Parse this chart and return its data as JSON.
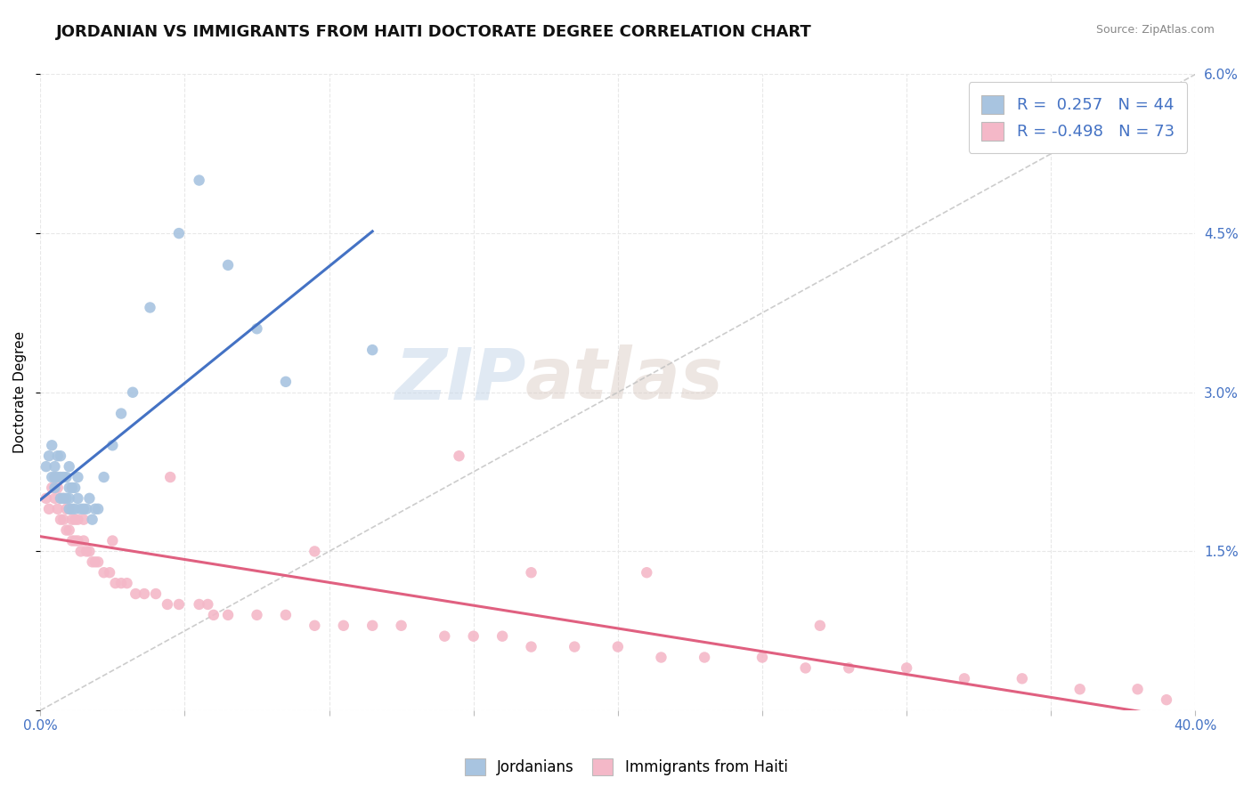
{
  "title": "JORDANIAN VS IMMIGRANTS FROM HAITI DOCTORATE DEGREE CORRELATION CHART",
  "source": "Source: ZipAtlas.com",
  "ylabel": "Doctorate Degree",
  "xlim": [
    0.0,
    0.4
  ],
  "ylim": [
    0.0,
    0.06
  ],
  "xticks": [
    0.0,
    0.05,
    0.1,
    0.15,
    0.2,
    0.25,
    0.3,
    0.35,
    0.4
  ],
  "yticks_right": [
    0.0,
    0.015,
    0.03,
    0.045,
    0.06
  ],
  "ytick_labels_right": [
    "",
    "1.5%",
    "3.0%",
    "4.5%",
    "6.0%"
  ],
  "r_jordanian": 0.257,
  "n_jordanian": 44,
  "r_haiti": -0.498,
  "n_haiti": 73,
  "color_jordanian": "#a8c4e0",
  "color_haiti": "#f4b8c8",
  "color_trendline_jordanian": "#4472c4",
  "color_trendline_haiti": "#e06080",
  "color_diagonal": "#c0c0c0",
  "background_color": "#ffffff",
  "grid_color": "#e8e8e8",
  "title_fontsize": 13,
  "axis_fontsize": 11,
  "tick_fontsize": 11,
  "watermark_zip": "ZIP",
  "watermark_atlas": "atlas",
  "scatter_jordanian_x": [
    0.002,
    0.003,
    0.004,
    0.004,
    0.005,
    0.005,
    0.005,
    0.006,
    0.006,
    0.007,
    0.007,
    0.007,
    0.008,
    0.008,
    0.009,
    0.009,
    0.01,
    0.01,
    0.01,
    0.01,
    0.011,
    0.011,
    0.012,
    0.012,
    0.013,
    0.013,
    0.014,
    0.015,
    0.016,
    0.017,
    0.018,
    0.019,
    0.02,
    0.022,
    0.025,
    0.028,
    0.032,
    0.038,
    0.048,
    0.055,
    0.065,
    0.075,
    0.085,
    0.115
  ],
  "scatter_jordanian_y": [
    0.023,
    0.024,
    0.022,
    0.025,
    0.021,
    0.022,
    0.023,
    0.022,
    0.024,
    0.02,
    0.022,
    0.024,
    0.02,
    0.022,
    0.02,
    0.022,
    0.019,
    0.02,
    0.021,
    0.023,
    0.019,
    0.021,
    0.019,
    0.021,
    0.02,
    0.022,
    0.019,
    0.019,
    0.019,
    0.02,
    0.018,
    0.019,
    0.019,
    0.022,
    0.025,
    0.028,
    0.03,
    0.038,
    0.045,
    0.05,
    0.042,
    0.036,
    0.031,
    0.034
  ],
  "scatter_haiti_x": [
    0.002,
    0.003,
    0.004,
    0.005,
    0.005,
    0.006,
    0.006,
    0.007,
    0.007,
    0.008,
    0.008,
    0.009,
    0.009,
    0.01,
    0.01,
    0.011,
    0.011,
    0.012,
    0.012,
    0.013,
    0.013,
    0.014,
    0.015,
    0.015,
    0.016,
    0.017,
    0.018,
    0.019,
    0.02,
    0.022,
    0.024,
    0.026,
    0.028,
    0.03,
    0.033,
    0.036,
    0.04,
    0.044,
    0.048,
    0.055,
    0.06,
    0.065,
    0.075,
    0.085,
    0.095,
    0.105,
    0.115,
    0.125,
    0.14,
    0.15,
    0.16,
    0.17,
    0.185,
    0.2,
    0.215,
    0.23,
    0.25,
    0.265,
    0.28,
    0.3,
    0.32,
    0.34,
    0.36,
    0.38,
    0.39,
    0.21,
    0.045,
    0.17,
    0.145,
    0.025,
    0.095,
    0.058,
    0.27
  ],
  "scatter_haiti_y": [
    0.02,
    0.019,
    0.021,
    0.02,
    0.022,
    0.019,
    0.021,
    0.018,
    0.02,
    0.018,
    0.02,
    0.017,
    0.019,
    0.017,
    0.019,
    0.016,
    0.018,
    0.016,
    0.018,
    0.016,
    0.018,
    0.015,
    0.016,
    0.018,
    0.015,
    0.015,
    0.014,
    0.014,
    0.014,
    0.013,
    0.013,
    0.012,
    0.012,
    0.012,
    0.011,
    0.011,
    0.011,
    0.01,
    0.01,
    0.01,
    0.009,
    0.009,
    0.009,
    0.009,
    0.008,
    0.008,
    0.008,
    0.008,
    0.007,
    0.007,
    0.007,
    0.006,
    0.006,
    0.006,
    0.005,
    0.005,
    0.005,
    0.004,
    0.004,
    0.004,
    0.003,
    0.003,
    0.002,
    0.002,
    0.001,
    0.013,
    0.022,
    0.013,
    0.024,
    0.016,
    0.015,
    0.01,
    0.008
  ],
  "trendline_jordan_x0": 0.0,
  "trendline_jordan_x1": 0.115,
  "trendline_haiti_x0": 0.0,
  "trendline_haiti_x1": 0.4
}
